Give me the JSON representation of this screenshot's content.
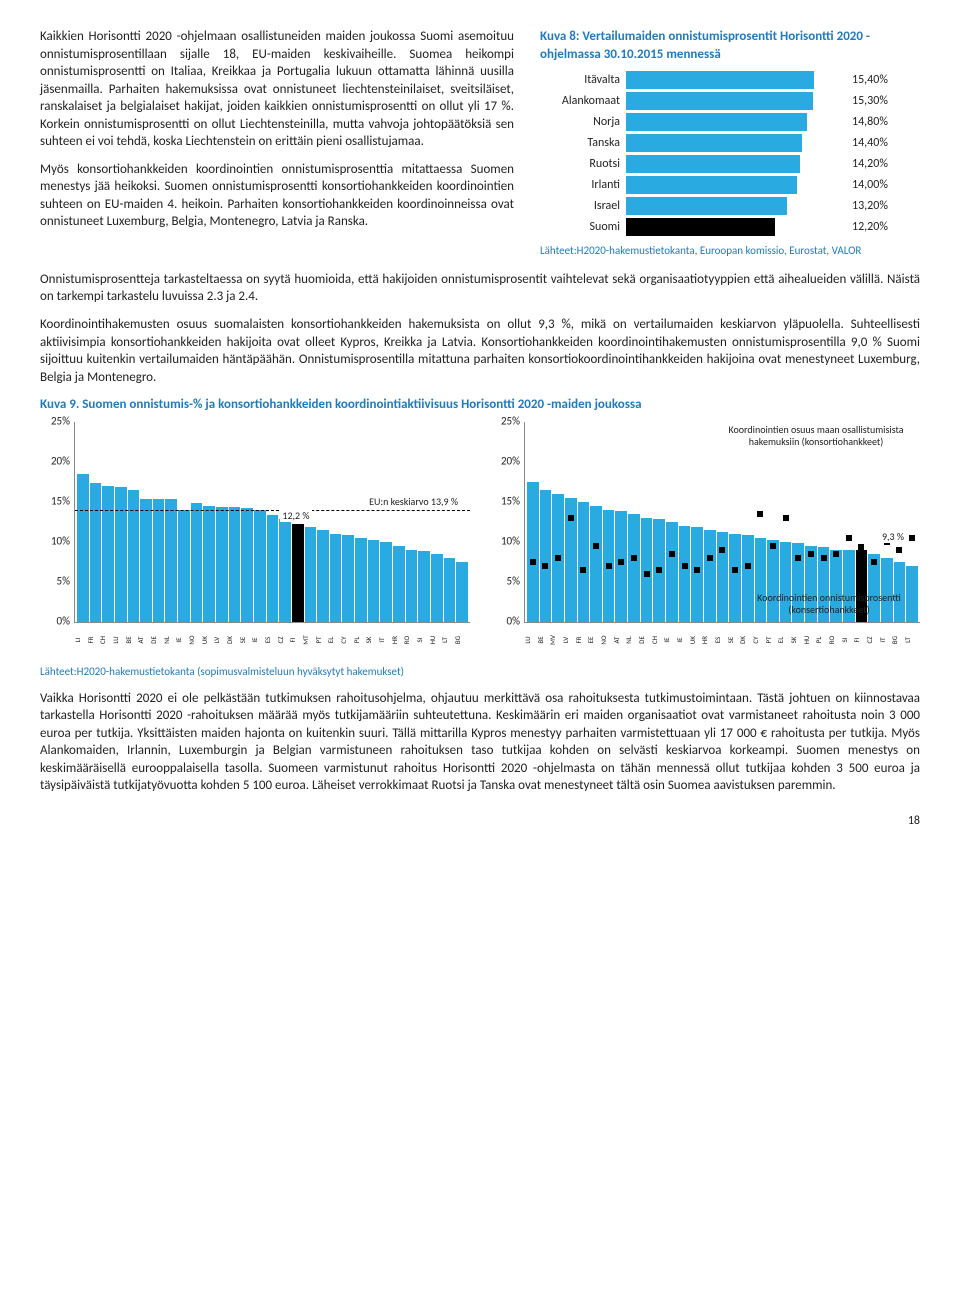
{
  "para1": "Kaikkien Horisontti 2020 -ohjelmaan osallistuneiden maiden joukossa Suomi asemoituu onnistumisprosentillaan sijalle 18, EU-maiden keskivaiheille. Suomea heikompi onnistumisprosentti on Italiaa, Kreikkaa ja Portugalia lukuun ottamatta lähinnä uusilla jäsenmailla. Parhaiten hakemuksissa ovat onnistuneet liechtensteinilaiset, sveitsiläiset, ranskalaiset ja belgialaiset hakijat, joiden kaikkien onnistumisprosentti on ollut yli 17 %. Korkein onnistumisprosentti on ollut Liechtensteinilla, mutta vahvoja johtopäätöksiä sen suhteen ei voi tehdä, koska Liechtenstein on erittäin pieni osallistujamaa.",
  "para2": "Myös konsortiohankkeiden koordinointien onnistumisprosenttia mitattaessa Suomen menestys jää heikoksi. Suomen onnistumisprosentti konsortiohankkeiden koordinointien suhteen on EU-maiden 4. heikoin. Parhaiten konsortiohankkeiden koordinoinneissa ovat onnistuneet Luxemburg, Belgia, Montenegro, Latvia ja Ranska.",
  "kuva8": {
    "title": "Kuva 8: Vertailumaiden onnistumisprosentit Horisontti 2020 -ohjelmassa 30.10.2015 mennessä",
    "bar_color": "#29abe2",
    "highlight_color": "#000000",
    "max": 18,
    "rows": [
      {
        "cat": "Itävalta",
        "val": 15.4,
        "label": "15,40%"
      },
      {
        "cat": "Alankomaat",
        "val": 15.3,
        "label": "15,30%"
      },
      {
        "cat": "Norja",
        "val": 14.8,
        "label": "14,80%"
      },
      {
        "cat": "Tanska",
        "val": 14.4,
        "label": "14,40%"
      },
      {
        "cat": "Ruotsi",
        "val": 14.2,
        "label": "14,20%"
      },
      {
        "cat": "Irlanti",
        "val": 14.0,
        "label": "14,00%"
      },
      {
        "cat": "Israel",
        "val": 13.2,
        "label": "13,20%"
      },
      {
        "cat": "Suomi",
        "val": 12.2,
        "label": "12,20%",
        "highlight": true
      }
    ],
    "source": "Lähteet:H2020-hakemustietokanta, Euroopan komissio, Eurostat, VALOR"
  },
  "para3": "Onnistumisprosentteja tarkasteltaessa on syytä huomioida, että hakijoiden onnistumisprosentit vaihtelevat sekä organisaatiotyyppien että aihealueiden välillä. Näistä on tarkempi tarkastelu luvuissa 2.3 ja 2.4.",
  "para4": "Koordinointihakemusten osuus suomalaisten konsortiohankkeiden hakemuksista on ollut 9,3 %, mikä on vertailumaiden keskiarvon yläpuolella. Suhteellisesti aktiivisimpia konsortiohankkeiden hakijoita ovat olleet Kypros, Kreikka ja Latvia. Konsortiohankkeiden koordinointihakemusten onnistumisprosentilla 9,0 % Suomi sijoittuu kuitenkin vertailumaiden häntäpäähän. Onnistumisprosentilla mitattuna parhaiten konsortiokoordinointihankkeiden hakijoina ovat menestyneet Luxemburg, Belgia ja Montenegro.",
  "kuva9_title": "Kuva 9. Suomen onnistumis-% ja konsortiohankkeiden koordinointiaktiivisuus Horisontti 2020 -maiden joukossa",
  "left_chart": {
    "ymax": 25,
    "avg_line": 13.9,
    "avg_label_left": "12,2 %",
    "avg_label_right": "EU:n keskiarvo 13,9 %",
    "yticks": [
      "0%",
      "5%",
      "10%",
      "15%",
      "20%",
      "25%"
    ],
    "bars": [
      {
        "c": "LI",
        "v": 18.5
      },
      {
        "c": "FR",
        "v": 17.3
      },
      {
        "c": "CH",
        "v": 17.0
      },
      {
        "c": "LU",
        "v": 16.8
      },
      {
        "c": "BE",
        "v": 16.5
      },
      {
        "c": "AT",
        "v": 15.4
      },
      {
        "c": "DE",
        "v": 15.3
      },
      {
        "c": "NL",
        "v": 15.3
      },
      {
        "c": "IE",
        "v": 14.0
      },
      {
        "c": "NO",
        "v": 14.8
      },
      {
        "c": "UK",
        "v": 14.5
      },
      {
        "c": "LV",
        "v": 14.4
      },
      {
        "c": "DK",
        "v": 14.4
      },
      {
        "c": "SE",
        "v": 14.2
      },
      {
        "c": "IE",
        "v": 14.0
      },
      {
        "c": "ES",
        "v": 13.4
      },
      {
        "c": "CZ",
        "v": 12.8
      },
      {
        "c": "FI",
        "v": 12.2,
        "hl": true
      },
      {
        "c": "MT",
        "v": 11.8
      },
      {
        "c": "PT",
        "v": 11.5
      },
      {
        "c": "EL",
        "v": 11.0
      },
      {
        "c": "CY",
        "v": 10.8
      },
      {
        "c": "PL",
        "v": 10.5
      },
      {
        "c": "SK",
        "v": 10.2
      },
      {
        "c": "IT",
        "v": 10.0
      },
      {
        "c": "HR",
        "v": 9.5
      },
      {
        "c": "RO",
        "v": 9.0
      },
      {
        "c": "SI",
        "v": 8.8
      },
      {
        "c": "HU",
        "v": 8.5
      },
      {
        "c": "LT",
        "v": 8.0
      },
      {
        "c": "BG",
        "v": 7.5
      }
    ]
  },
  "right_chart": {
    "ymax": 25,
    "annot_top": "Koordinointien osuus maan osallistumisista hakemuksiin (konsortiohankkeet)",
    "annot_bottom": "Koordinointien onnistumisprosentti (konsertiohankkeet)",
    "annot_value": "9,3 %",
    "yticks": [
      "0%",
      "5%",
      "10%",
      "15%",
      "20%",
      "25%"
    ],
    "bars": [
      {
        "c": "LU",
        "v": 17.5,
        "m": 7.5
      },
      {
        "c": "BE",
        "v": 16.5,
        "m": 7.0
      },
      {
        "c": "MV",
        "v": 16.0,
        "m": 8.0
      },
      {
        "c": "LV",
        "v": 15.5,
        "m": 13.0
      },
      {
        "c": "FR",
        "v": 15.0,
        "m": 6.5
      },
      {
        "c": "EE",
        "v": 14.5,
        "m": 9.5
      },
      {
        "c": "NO",
        "v": 14.0,
        "m": 7.0
      },
      {
        "c": "AT",
        "v": 13.8,
        "m": 7.5
      },
      {
        "c": "NL",
        "v": 13.5,
        "m": 8.0
      },
      {
        "c": "DE",
        "v": 13.0,
        "m": 6.0
      },
      {
        "c": "CH",
        "v": 12.8,
        "m": 6.5
      },
      {
        "c": "IE",
        "v": 12.5,
        "m": 8.5
      },
      {
        "c": "IE",
        "v": 12.0,
        "m": 7.0
      },
      {
        "c": "UK",
        "v": 11.8,
        "m": 6.5
      },
      {
        "c": "HR",
        "v": 11.5,
        "m": 8.0
      },
      {
        "c": "ES",
        "v": 11.2,
        "m": 9.0
      },
      {
        "c": "SE",
        "v": 11.0,
        "m": 6.5
      },
      {
        "c": "DK",
        "v": 10.8,
        "m": 7.0
      },
      {
        "c": "CY",
        "v": 10.5,
        "m": 13.5
      },
      {
        "c": "PT",
        "v": 10.2,
        "m": 9.5
      },
      {
        "c": "EL",
        "v": 10.0,
        "m": 13.0
      },
      {
        "c": "SK",
        "v": 9.8,
        "m": 8.0
      },
      {
        "c": "HU",
        "v": 9.5,
        "m": 8.5
      },
      {
        "c": "PL",
        "v": 9.3,
        "m": 8.0
      },
      {
        "c": "RO",
        "v": 9.0,
        "m": 8.5
      },
      {
        "c": "SI",
        "v": 9.0,
        "m": 10.5
      },
      {
        "c": "FI",
        "v": 9.0,
        "m": 9.3,
        "hl": true
      },
      {
        "c": "CZ",
        "v": 8.5,
        "m": 7.5
      },
      {
        "c": "IT",
        "v": 8.0,
        "m": 10.0
      },
      {
        "c": "BG",
        "v": 7.5,
        "m": 9.0
      },
      {
        "c": "LT",
        "v": 7.0,
        "m": 10.5
      }
    ]
  },
  "kuva9_source": "Lähteet:H2020-hakemustietokanta (sopimusvalmisteluun hyväksytyt hakemukset)",
  "para5": "Vaikka Horisontti 2020 ei ole pelkästään tutkimuksen rahoitusohjelma, ohjautuu merkittävä osa rahoituksesta tutkimustoimintaan. Tästä johtuen on kiinnostavaa tarkastella Horisontti 2020 -rahoituksen määrää myös tutkijamääriin suhteutettuna. Keskimäärin eri maiden organisaatiot ovat varmistaneet rahoitusta noin 3 000 euroa per tutkija. Yksittäisten maiden hajonta on kuitenkin suuri. Tällä mittarilla Kypros menestyy parhaiten varmistettuaan yli 17 000 € rahoitusta per tutkija. Myös Alankomaiden, Irlannin, Luxemburgin ja Belgian varmistuneen rahoituksen taso tutkijaa kohden on selvästi keskiarvoa korkeampi. Suomen menestys on keskimääräisellä eurooppalaisella tasolla. Suomeen varmistunut rahoitus Horisontti 2020 -ohjelmasta on tähän mennessä ollut tutkijaa kohden 3 500 euroa ja täysipäiväistä tutkijatyövuotta kohden 5 100 euroa. Läheiset verrokkimaat Ruotsi ja Tanska ovat menestyneet tältä osin Suomea aavistuksen paremmin.",
  "page_number": "18"
}
